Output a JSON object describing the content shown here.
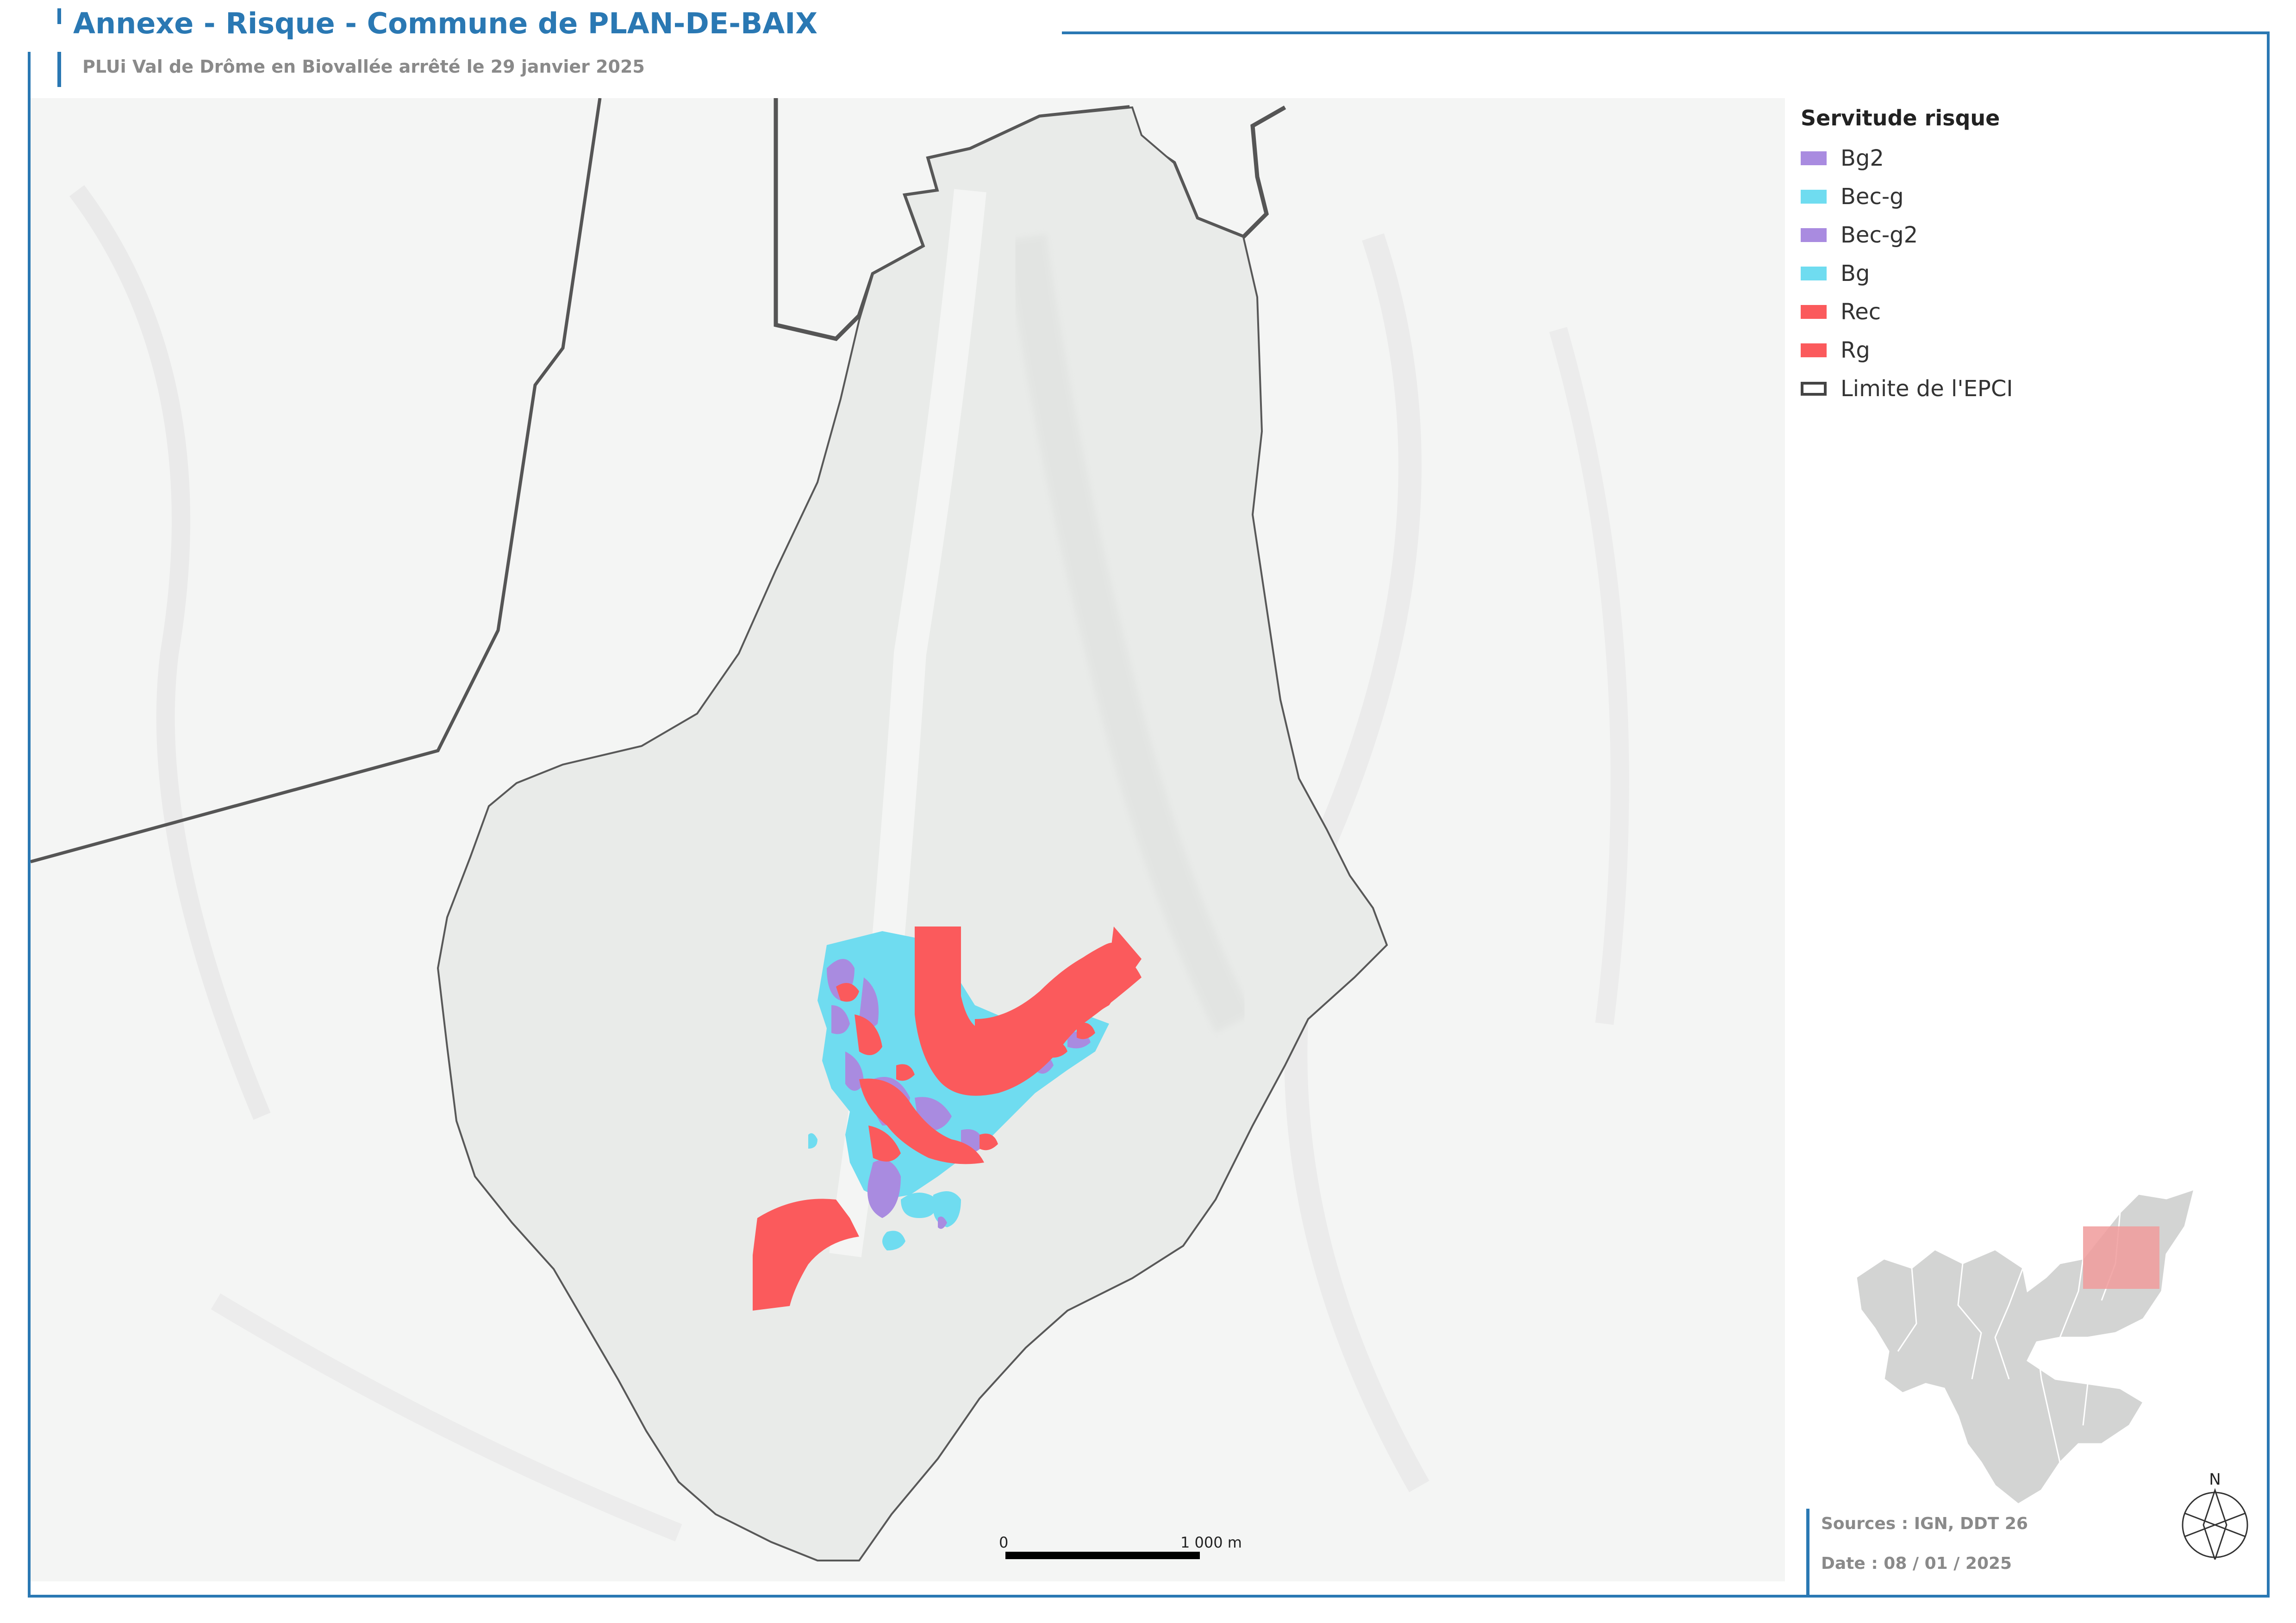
{
  "header": {
    "title": "Annexe - Risque - Commune de PLAN-DE-BAIX",
    "subtitle": "PLUi Val de Drôme en Biovallée arrêté le 29 janvier 2025"
  },
  "legend": {
    "title": "Servitude risque",
    "items": [
      {
        "label": "Bg2",
        "color": "#a98be0"
      },
      {
        "label": "Bec-g",
        "color": "#6fdcf0"
      },
      {
        "label": "Bec-g2",
        "color": "#a98be0"
      },
      {
        "label": "Bg",
        "color": "#6fdcf0"
      },
      {
        "label": "Rec",
        "color": "#fb5a5c"
      },
      {
        "label": "Rg",
        "color": "#fb5a5c"
      },
      {
        "label": "Limite de l'EPCI",
        "color": "#ffffff"
      }
    ]
  },
  "footer": {
    "sources": "Sources : IGN, DDT 26",
    "date": "Date : 08 / 01 / 2025"
  },
  "scale": {
    "start": "0",
    "end": "1 000 m"
  },
  "north": {
    "label": "N",
    "icon": "north-arrow-icon"
  },
  "colors": {
    "accent": "#2a78b3",
    "commune_fill": "#e9ebe9",
    "background": "#f4f5f4",
    "inset_territory": "#d3d4d3",
    "inset_highlight": "#f09b9b"
  }
}
